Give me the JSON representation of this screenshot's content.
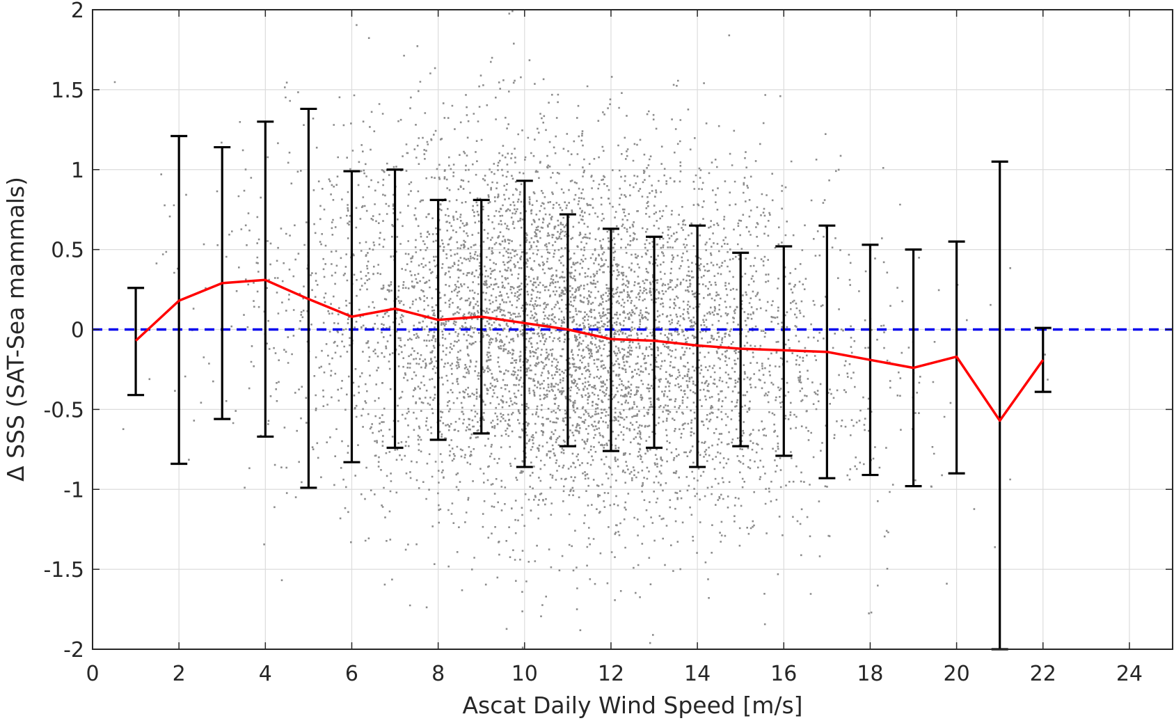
{
  "chart_data": {
    "type": "scatter",
    "title": "",
    "xlabel": "Ascat Daily Wind Speed [m/s]",
    "ylabel": "Δ SSS (SAT-Sea mammals)",
    "xlim": [
      0,
      25
    ],
    "ylim": [
      -2,
      2
    ],
    "xticks": [
      "0",
      "2",
      "4",
      "6",
      "8",
      "10",
      "12",
      "14",
      "16",
      "18",
      "20",
      "22",
      "24"
    ],
    "yticks": [
      "-2",
      "-1.5",
      "-1",
      "-0.5",
      "0",
      "0.5",
      "1",
      "1.5",
      "2"
    ],
    "grid": true,
    "legend": "none",
    "reference_line": {
      "y": 0,
      "style": "dashed",
      "color": "#0000ee"
    },
    "scatter_color": "#8c8c8c",
    "mean_line_color": "#ff0000",
    "errorbar_color": "#000000",
    "series": [
      {
        "kind": "errorbar-mean",
        "x": [
          1,
          2,
          3,
          4,
          5,
          6,
          7,
          8,
          9,
          10,
          11,
          12,
          13,
          14,
          15,
          16,
          17,
          18,
          19,
          20,
          21,
          22
        ],
        "mean": [
          -0.07,
          0.18,
          0.29,
          0.31,
          0.19,
          0.08,
          0.13,
          0.06,
          0.08,
          0.04,
          0.0,
          -0.06,
          -0.07,
          -0.1,
          -0.12,
          -0.13,
          -0.14,
          -0.19,
          -0.24,
          -0.17,
          -0.57,
          -0.19
        ],
        "upper": [
          0.26,
          1.21,
          1.14,
          1.3,
          1.38,
          0.99,
          1.0,
          0.81,
          0.81,
          0.93,
          0.72,
          0.63,
          0.58,
          0.65,
          0.48,
          0.52,
          0.65,
          0.53,
          0.5,
          0.55,
          1.05,
          0.01
        ],
        "lower": [
          -0.41,
          -0.84,
          -0.56,
          -0.67,
          -0.99,
          -0.83,
          -0.74,
          -0.69,
          -0.65,
          -0.86,
          -0.73,
          -0.76,
          -0.74,
          -0.86,
          -0.73,
          -0.79,
          -0.93,
          -0.91,
          -0.98,
          -0.9,
          -2.0,
          -0.39
        ]
      }
    ],
    "scatter_distribution": {
      "description_of_cloud": "dense point cloud, densest near x 9-13 and y -0.5 to 0.5",
      "x_range": [
        0.5,
        22.5
      ],
      "y_range": [
        -2,
        2
      ],
      "center": [
        11,
        0
      ],
      "approx_points_drawn": 11000
    }
  }
}
